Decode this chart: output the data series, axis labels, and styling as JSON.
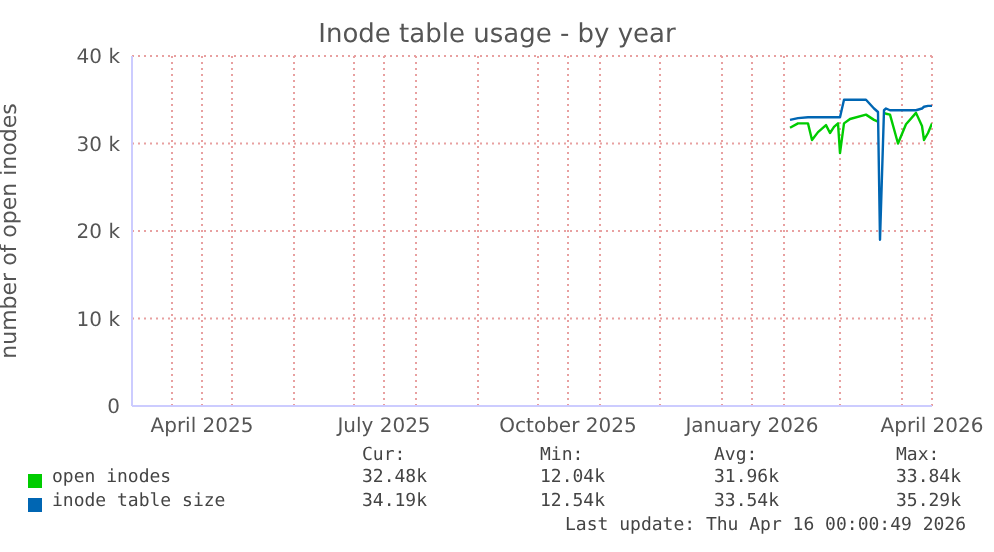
{
  "chart_data": {
    "type": "line",
    "title": "Inode table usage - by year",
    "ylabel": "number of open inodes",
    "x": [
      "2026-02-04",
      "2026-02-08",
      "2026-02-13",
      "2026-02-15",
      "2026-02-18",
      "2026-02-22",
      "2026-02-24",
      "2026-02-26",
      "2026-02-28",
      "2026-03-01",
      "2026-03-03",
      "2026-03-06",
      "2026-03-14",
      "2026-03-18",
      "2026-03-20",
      "2026-03-21",
      "2026-03-23",
      "2026-03-24",
      "2026-03-26",
      "2026-03-30",
      "2026-04-03",
      "2026-04-08",
      "2026-04-11",
      "2026-04-12",
      "2026-04-14",
      "2026-04-16"
    ],
    "series": [
      {
        "name": "open inodes",
        "color": "#00cc00",
        "values": [
          31800,
          32300,
          32300,
          30400,
          31300,
          32100,
          31200,
          31900,
          32300,
          28900,
          32300,
          32800,
          33300,
          32700,
          32500,
          null,
          33500,
          33400,
          33300,
          30000,
          32200,
          33500,
          32000,
          30400,
          31200,
          32300
        ]
      },
      {
        "name": "inode table size",
        "color": "#0066b3",
        "values": [
          32700,
          32900,
          33000,
          33000,
          33000,
          33000,
          33000,
          33000,
          33000,
          33000,
          35000,
          35000,
          35000,
          34000,
          33600,
          19000,
          33800,
          34000,
          33800,
          33800,
          33800,
          33800,
          34000,
          34200,
          34300,
          34300
        ]
      }
    ],
    "xlim": [
      "2025-03-12",
      "2026-04-16"
    ],
    "xticks": [
      {
        "value": "2025-04-01",
        "label": null
      },
      {
        "value": "2025-04-16",
        "label": "April 2025"
      },
      {
        "value": "2025-05-01",
        "label": null
      },
      {
        "value": "2025-06-01",
        "label": null
      },
      {
        "value": "2025-07-01",
        "label": null
      },
      {
        "value": "2025-07-16",
        "label": "July 2025"
      },
      {
        "value": "2025-08-01",
        "label": null
      },
      {
        "value": "2025-09-01",
        "label": null
      },
      {
        "value": "2025-10-01",
        "label": null
      },
      {
        "value": "2025-10-16",
        "label": "October 2025"
      },
      {
        "value": "2025-11-01",
        "label": null
      },
      {
        "value": "2025-12-01",
        "label": null
      },
      {
        "value": "2026-01-01",
        "label": null
      },
      {
        "value": "2026-01-16",
        "label": "January 2026"
      },
      {
        "value": "2026-02-01",
        "label": null
      },
      {
        "value": "2026-03-01",
        "label": null
      },
      {
        "value": "2026-04-01",
        "label": null
      },
      {
        "value": "2026-04-16",
        "label": "April 2026"
      }
    ],
    "ylim": [
      0,
      40000
    ],
    "yticks": [
      0,
      {
        "value": 10000,
        "label": "10 k"
      },
      {
        "value": 20000,
        "label": "20 k"
      },
      {
        "value": 30000,
        "label": "30 k"
      },
      {
        "value": 40000,
        "label": "40 k"
      }
    ],
    "grid": true,
    "legend": "bottom",
    "annotations": [
      "Cur:",
      "Min:",
      "Avg:",
      "Max:",
      "32.48k",
      "12.04k",
      "31.96k",
      "33.84k",
      "34.19k",
      "12.54k",
      "33.54k",
      "35.29k",
      "Last update: Thu Apr 16 00:00:49 2026"
    ]
  }
}
